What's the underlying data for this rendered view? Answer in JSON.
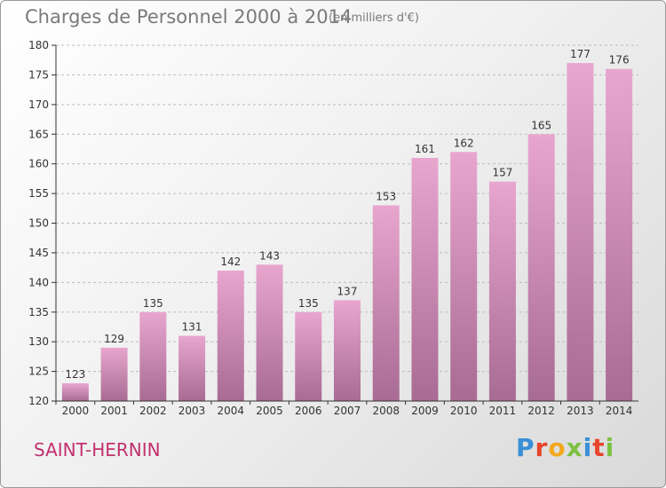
{
  "header": {
    "title": "Charges de Personnel 2000 à 2014",
    "unit": "(en milliers d'€)"
  },
  "footer": {
    "commune": "SAINT-HERNIN",
    "logo_text": "Proxiti",
    "logo_colors": [
      "#3a8fd6",
      "#e8452c",
      "#f2a81d",
      "#7cc242",
      "#3a8fd6",
      "#e8452c",
      "#7cc242"
    ]
  },
  "colors": {
    "bar_top": "#e8a6cf",
    "bar_bottom": "#a86b93",
    "grid": "#bcbcbc",
    "axis": "#333333",
    "text": "#333333"
  },
  "chart_data": {
    "type": "bar",
    "title": "Charges de Personnel 2000 à 2014",
    "categories": [
      "2000",
      "2001",
      "2002",
      "2003",
      "2004",
      "2005",
      "2006",
      "2007",
      "2008",
      "2009",
      "2010",
      "2011",
      "2012",
      "2013",
      "2014"
    ],
    "values": [
      123,
      129,
      135,
      131,
      142,
      143,
      135,
      137,
      153,
      161,
      162,
      157,
      165,
      177,
      176
    ],
    "ylim": [
      120,
      180
    ],
    "yticks": [
      120,
      125,
      130,
      135,
      140,
      145,
      150,
      155,
      160,
      165,
      170,
      175,
      180
    ],
    "grid": true,
    "data_labels": true
  }
}
